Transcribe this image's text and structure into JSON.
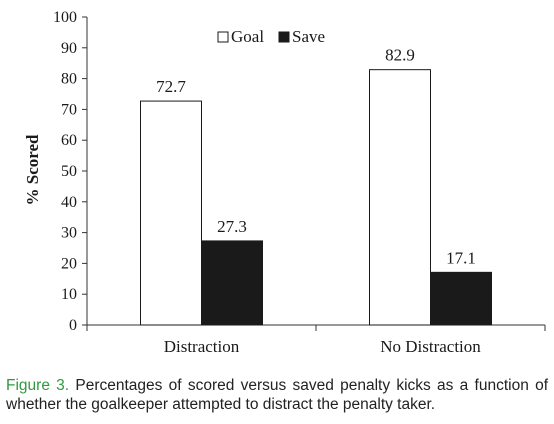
{
  "chart_data": {
    "type": "bar",
    "categories": [
      "Distraction",
      "No Distraction"
    ],
    "series": [
      {
        "name": "Goal",
        "values": [
          72.7,
          82.9
        ],
        "color": "#ffffff"
      },
      {
        "name": "Save",
        "values": [
          27.3,
          17.1
        ],
        "color": "#1a1a1a"
      }
    ],
    "ylabel": "% Scored",
    "xlabel": "",
    "ylim": [
      0,
      100
    ],
    "yticks": [
      0,
      10,
      20,
      30,
      40,
      50,
      60,
      70,
      80,
      90,
      100
    ],
    "data_labels": true,
    "grid": false,
    "legend": "top-center"
  },
  "caption": {
    "label": "Figure 3.",
    "text": "Percentages of scored versus saved penalty kicks as a function of whether the goalkeeper attempted to distract the penalty taker."
  },
  "colors": {
    "caption_label": "#2f9a3e",
    "axis": "#333333"
  }
}
